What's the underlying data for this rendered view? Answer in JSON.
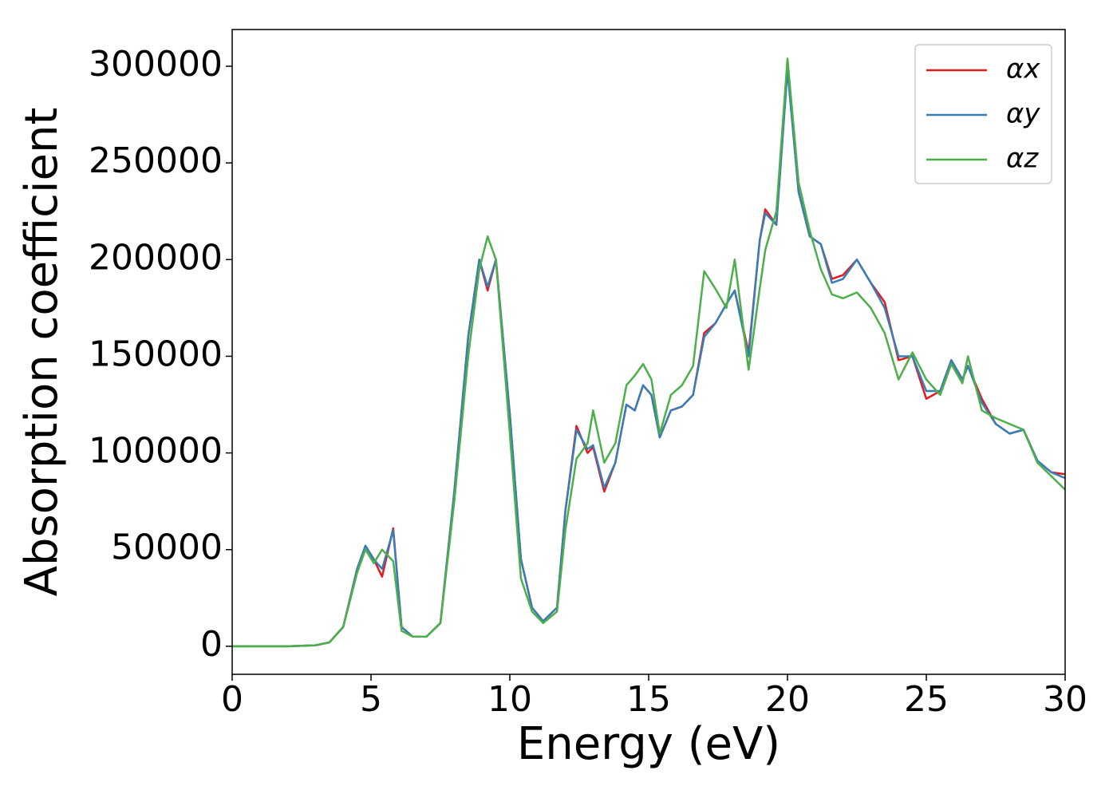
{
  "chart_data": {
    "type": "line",
    "xlabel": "Energy (eV)",
    "ylabel": "Absorption coefficient",
    "x": [
      0,
      1,
      2,
      3,
      3.5,
      4,
      4.5,
      4.8,
      5.1,
      5.4,
      5.8,
      6.1,
      6.5,
      7,
      7.5,
      8,
      8.5,
      8.9,
      9.2,
      9.5,
      10,
      10.4,
      10.8,
      11.2,
      11.7,
      12,
      12.4,
      12.8,
      13,
      13.4,
      13.8,
      14.2,
      14.5,
      14.8,
      15.1,
      15.4,
      15.8,
      16.2,
      16.6,
      17,
      17.4,
      17.8,
      18.1,
      18.6,
      19,
      19.2,
      19.6,
      20,
      20.4,
      20.8,
      21.2,
      21.6,
      22,
      22.5,
      23,
      23.5,
      24,
      24.5,
      25,
      25.5,
      25.9,
      26.3,
      26.5,
      27,
      27.5,
      28,
      28.5,
      29,
      29.5,
      30
    ],
    "series": [
      {
        "name": "αx",
        "color": "#e41a1c",
        "values": [
          0,
          0,
          0,
          500,
          2000,
          10000,
          40000,
          52000,
          45000,
          36000,
          61000,
          10000,
          5000,
          5000,
          12000,
          80000,
          160000,
          200000,
          184000,
          200000,
          120000,
          45000,
          20000,
          13000,
          20000,
          70000,
          114000,
          100000,
          103000,
          80000,
          95000,
          125000,
          122000,
          135000,
          130000,
          108000,
          122000,
          124000,
          130000,
          162000,
          167000,
          177000,
          184000,
          152000,
          210000,
          226000,
          218000,
          300000,
          235000,
          212000,
          208000,
          190000,
          192000,
          200000,
          188000,
          178000,
          148000,
          150000,
          128000,
          132000,
          148000,
          138000,
          145000,
          128000,
          115000,
          110000,
          112000,
          96000,
          90000,
          89000
        ]
      },
      {
        "name": "αy",
        "color": "#377eb8",
        "values": [
          0,
          0,
          0,
          500,
          2000,
          10000,
          40000,
          52000,
          45000,
          40000,
          60000,
          10000,
          5000,
          5000,
          12000,
          80000,
          160000,
          200000,
          186000,
          200000,
          120000,
          45000,
          20000,
          13000,
          20000,
          70000,
          112000,
          102000,
          104000,
          82000,
          95000,
          125000,
          122000,
          135000,
          130000,
          108000,
          122000,
          124000,
          130000,
          160000,
          167000,
          177000,
          184000,
          150000,
          210000,
          224000,
          218000,
          298000,
          235000,
          212000,
          208000,
          188000,
          190000,
          200000,
          188000,
          175000,
          150000,
          150000,
          132000,
          132000,
          148000,
          138000,
          145000,
          126000,
          115000,
          110000,
          112000,
          96000,
          90000,
          87000
        ]
      },
      {
        "name": "αz",
        "color": "#4daf4a",
        "values": [
          0,
          0,
          0,
          500,
          2000,
          10000,
          38000,
          50000,
          43000,
          50000,
          44000,
          8000,
          5000,
          5000,
          12000,
          75000,
          150000,
          195000,
          212000,
          200000,
          110000,
          35000,
          18000,
          12000,
          18000,
          60000,
          97000,
          105000,
          122000,
          95000,
          105000,
          135000,
          140000,
          146000,
          138000,
          110000,
          130000,
          135000,
          145000,
          194000,
          185000,
          175000,
          200000,
          143000,
          185000,
          205000,
          225000,
          304000,
          240000,
          215000,
          195000,
          182000,
          180000,
          183000,
          175000,
          162000,
          138000,
          152000,
          138000,
          130000,
          146000,
          136000,
          150000,
          122000,
          118000,
          115000,
          112000,
          95000,
          88000,
          81000
        ]
      }
    ],
    "xlim": [
      0,
      30
    ],
    "xticks": [
      0,
      5,
      10,
      15,
      20,
      25,
      30
    ],
    "ylim": [
      -14500,
      319000
    ],
    "yticks": [
      0,
      50000,
      100000,
      150000,
      200000,
      250000,
      300000
    ],
    "legend": "upper right"
  }
}
